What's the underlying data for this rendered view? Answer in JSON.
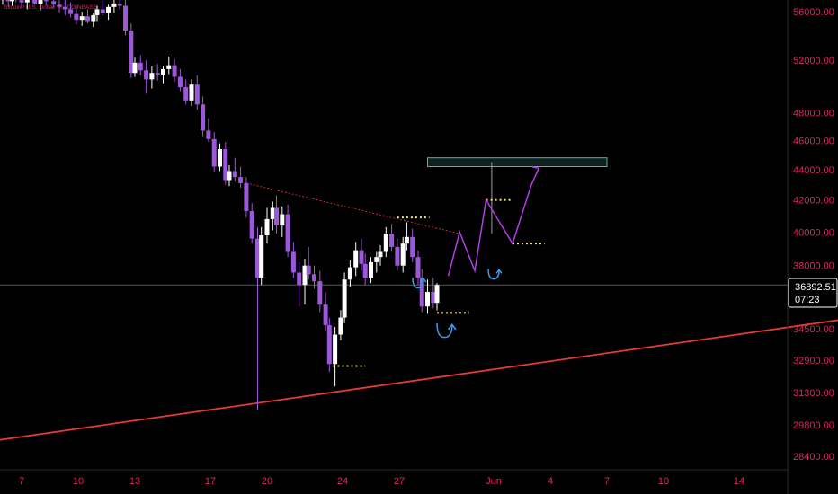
{
  "chart_title": "Bitcoin / U.S. Dollar, 4h, COINBASE",
  "colors": {
    "background": "#000000",
    "label": "#e0245e",
    "bull_candle": "#ffffff",
    "bear_candle": "#9b59d9",
    "trendline_support": "#e53935",
    "trendline_resistance": "#e53935",
    "level_marker": "#f5e663",
    "projection": "#b040e0",
    "reversal_arrow": "#3d9be9",
    "target_zone": "#4db6ac",
    "crosshair": "#555555"
  },
  "price_tag": {
    "price": "36892.51",
    "countdown": "07:23"
  },
  "chart_data": {
    "type": "candlestick",
    "y_scale": "log",
    "y_ticks": [
      56000,
      52000,
      48000,
      46000,
      44000,
      42000,
      40000,
      38000,
      34500,
      32900,
      31300,
      29800,
      28400
    ],
    "x_ticks": [
      {
        "day": 7,
        "label": "7"
      },
      {
        "day": 10,
        "label": "10"
      },
      {
        "day": 13,
        "label": "13"
      },
      {
        "day": 17,
        "label": "17"
      },
      {
        "day": 20,
        "label": "20"
      },
      {
        "day": 24,
        "label": "24"
      },
      {
        "day": 27,
        "label": "27"
      },
      {
        "day": 32,
        "label": "Jun"
      },
      {
        "day": 35,
        "label": "4"
      },
      {
        "day": 38,
        "label": "7"
      },
      {
        "day": 41,
        "label": "10"
      },
      {
        "day": 45,
        "label": "14"
      }
    ],
    "candles": [
      [
        6.0,
        57000,
        57600,
        56600,
        57300
      ],
      [
        6.2,
        57300,
        57800,
        56900,
        57100
      ],
      [
        6.3,
        57100,
        57500,
        56400,
        56900
      ],
      [
        6.5,
        56900,
        57400,
        56500,
        57200
      ],
      [
        6.7,
        57200,
        57600,
        56800,
        57000
      ],
      [
        7.0,
        57000,
        57700,
        56300,
        56800
      ],
      [
        7.3,
        56800,
        57400,
        56200,
        57100
      ],
      [
        7.7,
        57100,
        57600,
        56600,
        56700
      ],
      [
        8.0,
        56700,
        57300,
        56100,
        57000
      ],
      [
        8.3,
        57000,
        57500,
        56500,
        56900
      ],
      [
        8.7,
        56900,
        57400,
        56300,
        56600
      ],
      [
        9.0,
        56600,
        57200,
        55900,
        56400
      ],
      [
        9.3,
        56400,
        57000,
        55700,
        56200
      ],
      [
        9.6,
        56200,
        56800,
        55500,
        55800
      ],
      [
        9.9,
        55800,
        56400,
        54900,
        55300
      ],
      [
        10.2,
        55300,
        56000,
        54800,
        55600
      ],
      [
        10.5,
        55600,
        56200,
        55000,
        55200
      ],
      [
        10.8,
        55200,
        55900,
        54700,
        55700
      ],
      [
        11.0,
        55700,
        56500,
        55200,
        56200
      ],
      [
        11.3,
        56200,
        57000,
        55700,
        55900
      ],
      [
        11.6,
        55900,
        56600,
        55300,
        56400
      ],
      [
        11.9,
        56400,
        57100,
        55900,
        56700
      ],
      [
        12.2,
        56700,
        57200,
        56200,
        56500
      ],
      [
        12.5,
        56500,
        57000,
        54000,
        54400
      ],
      [
        12.8,
        54400,
        55000,
        50600,
        51000
      ],
      [
        13.0,
        51000,
        52200,
        50700,
        51800
      ],
      [
        13.3,
        51800,
        52400,
        50800,
        51200
      ],
      [
        13.6,
        51200,
        52000,
        49400,
        50500
      ],
      [
        13.9,
        50500,
        51500,
        49800,
        51000
      ],
      [
        14.2,
        51000,
        51700,
        50400,
        50800
      ],
      [
        14.5,
        50800,
        51500,
        50200,
        51300
      ],
      [
        14.8,
        51300,
        52300,
        50900,
        51600
      ],
      [
        15.1,
        51600,
        52100,
        50300,
        50700
      ],
      [
        15.4,
        50700,
        51300,
        49600,
        49900
      ],
      [
        15.7,
        49900,
        50500,
        48600,
        48900
      ],
      [
        16.0,
        48900,
        50500,
        48500,
        50100
      ],
      [
        16.3,
        50100,
        50800,
        48200,
        48600
      ],
      [
        16.6,
        48600,
        49200,
        46300,
        46700
      ],
      [
        16.9,
        46700,
        47600,
        45900,
        46100
      ],
      [
        17.2,
        46100,
        46600,
        43800,
        44200
      ],
      [
        17.5,
        44200,
        45800,
        43900,
        45400
      ],
      [
        17.8,
        45400,
        45900,
        43000,
        43300
      ],
      [
        18.0,
        43300,
        44300,
        42900,
        43900
      ],
      [
        18.3,
        43900,
        44800,
        43200,
        43500
      ],
      [
        18.6,
        43500,
        44200,
        42800,
        43100
      ],
      [
        18.9,
        43100,
        43500,
        40900,
        41300
      ],
      [
        19.2,
        41300,
        41800,
        39300,
        39600
      ],
      [
        19.5,
        39600,
        40300,
        30500,
        37300
      ],
      [
        19.7,
        37300,
        40300,
        36900,
        39800
      ],
      [
        20.0,
        39800,
        41500,
        39300,
        40800
      ],
      [
        20.3,
        40800,
        41900,
        40100,
        41500
      ],
      [
        20.5,
        41500,
        42300,
        39900,
        40400
      ],
      [
        20.8,
        40400,
        41600,
        39700,
        41100
      ],
      [
        21.1,
        41100,
        41700,
        38500,
        38800
      ],
      [
        21.4,
        38800,
        39400,
        37300,
        37600
      ],
      [
        21.7,
        37600,
        38200,
        35700,
        36900
      ],
      [
        22.0,
        36900,
        38400,
        35800,
        38000
      ],
      [
        22.2,
        38000,
        39100,
        37200,
        37500
      ],
      [
        22.5,
        37500,
        38000,
        36700,
        37100
      ],
      [
        22.8,
        37100,
        37700,
        35400,
        35800
      ],
      [
        23.1,
        35800,
        36500,
        34400,
        34700
      ],
      [
        23.3,
        34700,
        35100,
        32300,
        32700
      ],
      [
        23.6,
        32700,
        34600,
        31600,
        34200
      ],
      [
        23.9,
        34200,
        35500,
        33900,
        35100
      ],
      [
        24.1,
        35100,
        37600,
        34800,
        37200
      ],
      [
        24.4,
        37200,
        38300,
        36800,
        37900
      ],
      [
        24.7,
        37900,
        39400,
        37400,
        38900
      ],
      [
        25.0,
        38900,
        39600,
        37700,
        38100
      ],
      [
        25.2,
        38100,
        38700,
        36900,
        37300
      ],
      [
        25.5,
        37300,
        38500,
        37000,
        38200
      ],
      [
        25.8,
        38200,
        38800,
        37600,
        38500
      ],
      [
        26.0,
        38500,
        39200,
        38000,
        38800
      ],
      [
        26.3,
        38800,
        40300,
        38500,
        39900
      ],
      [
        26.6,
        39900,
        40500,
        38800,
        39100
      ],
      [
        26.9,
        39100,
        39600,
        37700,
        38000
      ],
      [
        27.2,
        38000,
        39700,
        37600,
        39300
      ],
      [
        27.4,
        39300,
        40600,
        38900,
        39700
      ],
      [
        27.7,
        39700,
        40200,
        38200,
        38500
      ],
      [
        28.0,
        38500,
        38900,
        36900,
        37300
      ],
      [
        28.2,
        37300,
        37800,
        35400,
        35700
      ],
      [
        28.5,
        35700,
        37200,
        35300,
        36500
      ],
      [
        28.8,
        36500,
        37300,
        35600,
        35900
      ],
      [
        29.0,
        35900,
        37000,
        35500,
        36892
      ]
    ],
    "trendlines": [
      {
        "name": "rising support",
        "from": [
          2.3,
          28700
        ],
        "to": [
          50.5,
          35000
        ]
      },
      {
        "name": "descending resistance",
        "from": [
          18.9,
          43100
        ],
        "to": [
          30.2,
          39900
        ]
      }
    ],
    "levels": [
      {
        "x1": 23.5,
        "x2": 25.2,
        "price": 32600
      },
      {
        "x1": 26.9,
        "x2": 28.6,
        "price": 40900
      },
      {
        "x1": 29.0,
        "x2": 30.7,
        "price": 35350
      },
      {
        "x1": 31.6,
        "x2": 32.9,
        "price": 42000
      },
      {
        "x1": 33.0,
        "x2": 34.7,
        "price": 39300
      }
    ],
    "projection_path": [
      [
        29.6,
        37400
      ],
      [
        30.2,
        40000
      ],
      [
        31.0,
        37700
      ],
      [
        31.6,
        42000
      ],
      [
        33.0,
        39300
      ],
      [
        34.0,
        43000
      ],
      [
        34.4,
        44100
      ]
    ],
    "target_zone": {
      "x1": 28.5,
      "x2": 38.0,
      "y1": 44200,
      "y2": 44800
    },
    "measure_line": {
      "x": 31.9,
      "y1": 39900,
      "y2": 44500
    },
    "arrows": [
      {
        "x": 28.0,
        "price": 37000
      },
      {
        "x": 29.4,
        "price": 34400
      },
      {
        "x": 32.0,
        "price": 37500
      }
    ]
  }
}
